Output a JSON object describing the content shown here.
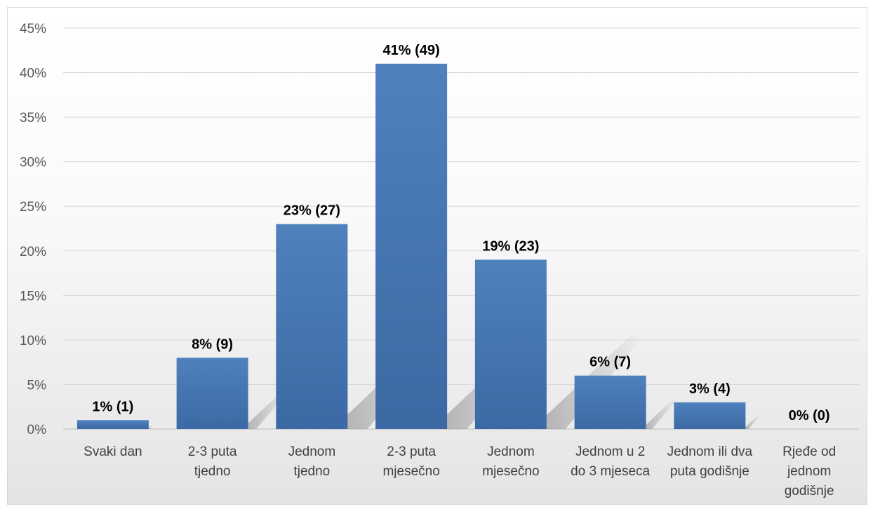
{
  "chart_data": {
    "type": "bar",
    "categories": [
      [
        "Svaki dan"
      ],
      [
        "2-3 puta",
        "tjedno"
      ],
      [
        "Jednom",
        "tjedno"
      ],
      [
        "2-3 puta",
        "mjesečno"
      ],
      [
        "Jednom",
        "mjesečno"
      ],
      [
        "Jednom u 2",
        "do 3 mjeseca"
      ],
      [
        "Jednom ili dva",
        "puta godišnje"
      ],
      [
        "Rjeđe od",
        "jednom",
        "godišnje"
      ]
    ],
    "values": [
      1,
      8,
      23,
      41,
      19,
      6,
      3,
      0
    ],
    "data_labels": [
      "1% (1)",
      "8% (9)",
      "23% (27)",
      "41% (49)",
      "19% (23)",
      "6% (7)",
      "3% (4)",
      "0% (0)"
    ],
    "y_ticks": [
      "0%",
      "5%",
      "10%",
      "15%",
      "20%",
      "25%",
      "30%",
      "35%",
      "40%",
      "45%"
    ],
    "ylim": [
      0,
      45
    ],
    "grid": true,
    "legend": "none",
    "bar_color": "#4f81bd"
  }
}
